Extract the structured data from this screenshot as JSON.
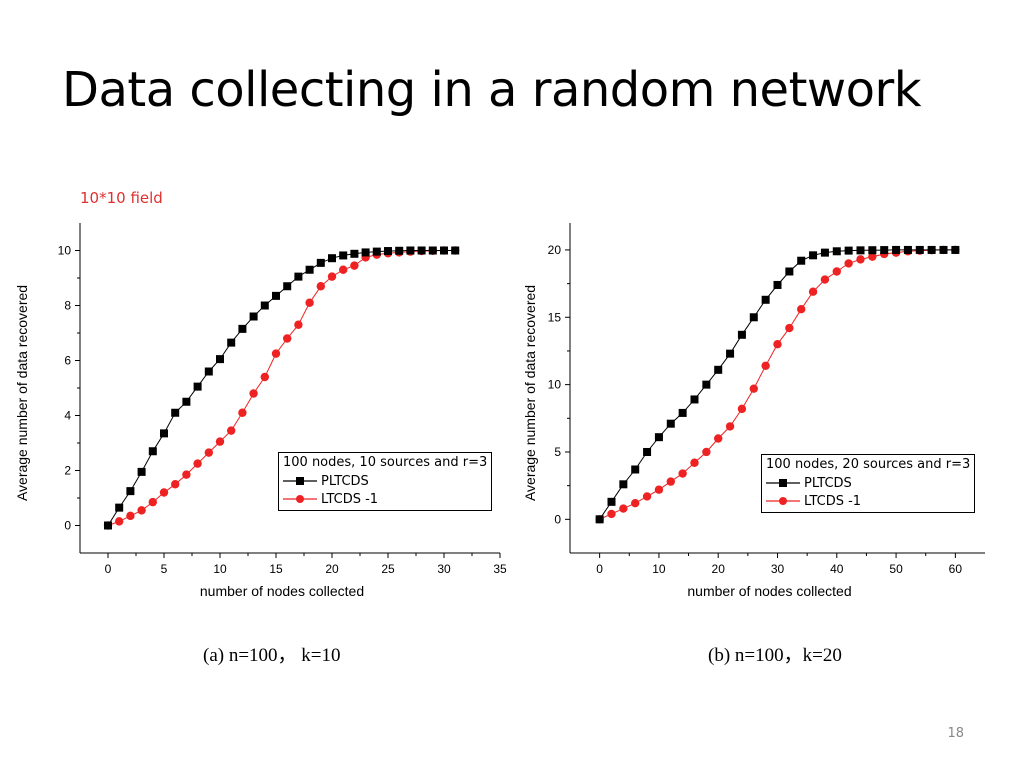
{
  "slide": {
    "title": "Data collecting in a random network",
    "note": "10*10 field",
    "page_number": "18"
  },
  "colors": {
    "pltcds": "#000000",
    "ltcds": "#ee2222",
    "note": "#e03030"
  },
  "chart_data": [
    {
      "type": "line",
      "caption": "(a) n=100， k=10",
      "xlabel": "number of nodes collected",
      "ylabel": "Average number of data recovered",
      "xlim": [
        -2.5,
        35
      ],
      "ylim": [
        -1,
        11
      ],
      "xticks": [
        0,
        5,
        10,
        15,
        20,
        25,
        30,
        35
      ],
      "yticks": [
        0,
        2,
        4,
        6,
        8,
        10
      ],
      "grid": false,
      "legend_title": "100 nodes, 10 sources and r=3",
      "legend_position": "bottom-right",
      "series": [
        {
          "name": "PLTCDS",
          "marker": "square",
          "x": [
            0,
            1,
            2,
            3,
            4,
            5,
            6,
            7,
            8,
            9,
            10,
            11,
            12,
            13,
            14,
            15,
            16,
            17,
            18,
            19,
            20,
            21,
            22,
            23,
            24,
            25,
            26,
            27,
            28,
            29,
            30,
            31
          ],
          "y": [
            0,
            0.65,
            1.25,
            1.95,
            2.7,
            3.35,
            4.1,
            4.5,
            5.05,
            5.6,
            6.05,
            6.65,
            7.15,
            7.6,
            8.0,
            8.35,
            8.7,
            9.05,
            9.3,
            9.55,
            9.72,
            9.82,
            9.88,
            9.93,
            9.96,
            9.98,
            9.99,
            10,
            10,
            10,
            10,
            10
          ]
        },
        {
          "name": "LTCDS -1",
          "marker": "circle",
          "x": [
            0,
            1,
            2,
            3,
            4,
            5,
            6,
            7,
            8,
            9,
            10,
            11,
            12,
            13,
            14,
            15,
            16,
            17,
            18,
            19,
            20,
            21,
            22,
            23,
            24,
            25,
            26,
            27,
            28,
            29,
            30,
            31
          ],
          "y": [
            0,
            0.15,
            0.35,
            0.55,
            0.85,
            1.2,
            1.5,
            1.85,
            2.25,
            2.65,
            3.05,
            3.45,
            4.1,
            4.8,
            5.4,
            6.25,
            6.8,
            7.3,
            8.1,
            8.7,
            9.05,
            9.3,
            9.45,
            9.75,
            9.85,
            9.9,
            9.93,
            9.96,
            9.98,
            9.99,
            10,
            10
          ]
        }
      ]
    },
    {
      "type": "line",
      "caption": "(b) n=100，k=20",
      "xlabel": "number of nodes collected",
      "ylabel": "Average number of data recovered",
      "xlim": [
        -5,
        65
      ],
      "ylim": [
        -2.5,
        22
      ],
      "xticks": [
        0,
        10,
        20,
        30,
        40,
        50,
        60
      ],
      "yticks": [
        0,
        5,
        10,
        15,
        20
      ],
      "grid": false,
      "legend_title": "100 nodes, 20 sources and r=3",
      "legend_position": "bottom-right",
      "series": [
        {
          "name": "PLTCDS",
          "marker": "square",
          "x": [
            0,
            2,
            4,
            6,
            8,
            10,
            12,
            14,
            16,
            18,
            20,
            22,
            24,
            26,
            28,
            30,
            32,
            34,
            36,
            38,
            40,
            42,
            44,
            46,
            48,
            50,
            52,
            54,
            56,
            58,
            60
          ],
          "y": [
            0,
            1.3,
            2.6,
            3.7,
            5.0,
            6.1,
            7.1,
            7.9,
            8.9,
            10.0,
            11.1,
            12.3,
            13.7,
            15.0,
            16.3,
            17.4,
            18.4,
            19.2,
            19.6,
            19.8,
            19.9,
            19.95,
            19.97,
            19.98,
            19.99,
            20,
            20,
            20,
            20,
            20,
            20
          ]
        },
        {
          "name": "LTCDS -1",
          "marker": "circle",
          "x": [
            0,
            2,
            4,
            6,
            8,
            10,
            12,
            14,
            16,
            18,
            20,
            22,
            24,
            26,
            28,
            30,
            32,
            34,
            36,
            38,
            40,
            42,
            44,
            46,
            48,
            50,
            52,
            54,
            56,
            58,
            60
          ],
          "y": [
            0,
            0.4,
            0.8,
            1.2,
            1.7,
            2.2,
            2.8,
            3.4,
            4.2,
            5.0,
            6.0,
            6.9,
            8.2,
            9.7,
            11.4,
            13.0,
            14.2,
            15.6,
            16.9,
            17.8,
            18.4,
            19.0,
            19.3,
            19.5,
            19.7,
            19.8,
            19.9,
            19.95,
            19.98,
            20,
            20
          ]
        }
      ]
    }
  ]
}
